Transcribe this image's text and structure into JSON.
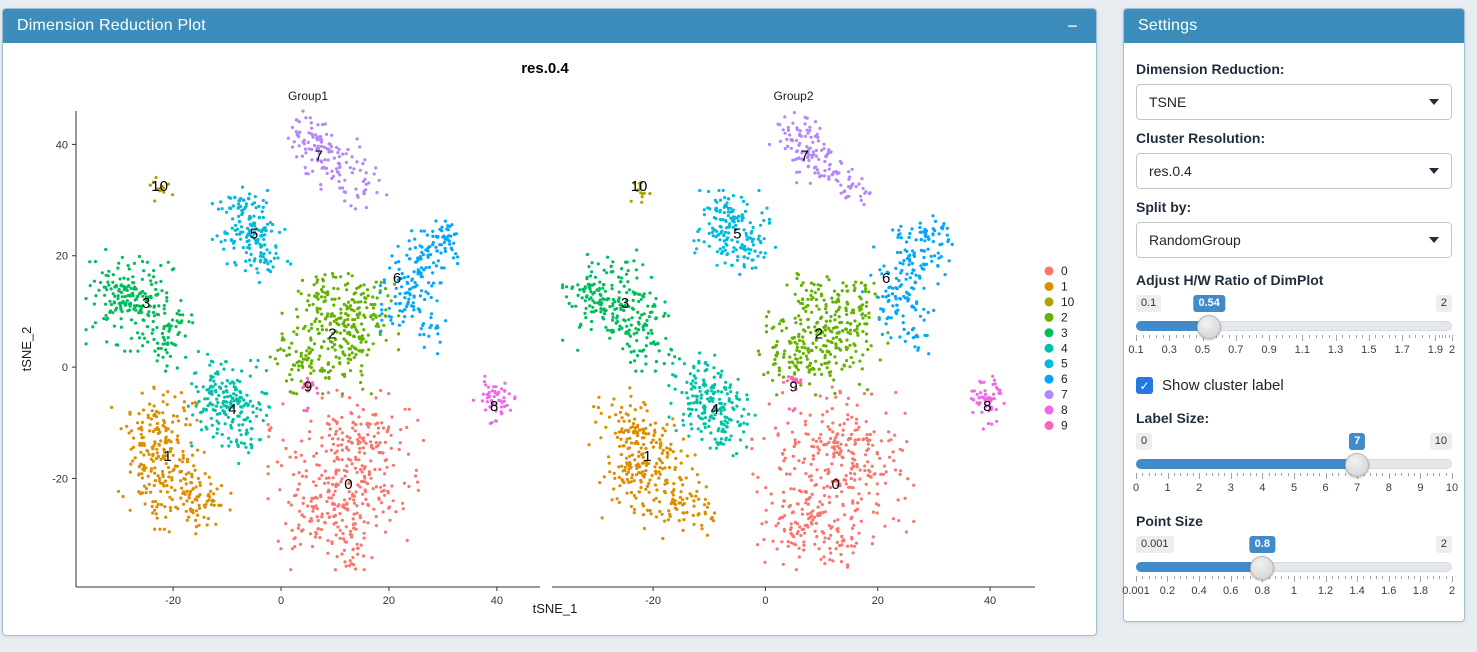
{
  "theme": {
    "panel_header_bg": "#3c8dbc",
    "header_text": "#ffffff",
    "page_bg": "#e8edf2",
    "card_border": "#9fc0d4",
    "slider_fill": "#428bca",
    "value_badge_bg": "#428bca",
    "range_badge_bg": "#ededed",
    "checkbox_bg": "#2379e0"
  },
  "plot_panel": {
    "title": "Dimension Reduction Plot",
    "minimize_icon": "−"
  },
  "chart_data": {
    "type": "scatter",
    "title": "res.0.4",
    "facets": [
      "Group1",
      "Group2"
    ],
    "xlabel": "tSNE_1",
    "ylabel": "tSNE_2",
    "xlim": [
      -38,
      48
    ],
    "ylim": [
      -39.5,
      46
    ],
    "xticks": [
      -20,
      0,
      20,
      40
    ],
    "yticks": [
      40,
      20,
      0,
      -20
    ],
    "grid": false,
    "legend_position": "right",
    "point_radius_px": 1.6,
    "legend_order": [
      "0",
      "1",
      "10",
      "2",
      "3",
      "4",
      "5",
      "6",
      "7",
      "8",
      "9"
    ],
    "clusters": [
      {
        "id": "0",
        "color": "#F8766D",
        "label_pos": [
          12.5,
          -21
        ],
        "blobs": [
          [
            12,
            -19,
            6,
            240
          ],
          [
            7,
            -28,
            3.5,
            80
          ],
          [
            17,
            -12,
            3.5,
            60
          ],
          [
            13,
            -33,
            1.8,
            25
          ]
        ]
      },
      {
        "id": "1",
        "color": "#DB8E00",
        "label_pos": [
          -21,
          -16
        ],
        "blobs": [
          [
            -23,
            -12,
            3.5,
            120
          ],
          [
            -21,
            -20,
            3.8,
            130
          ],
          [
            -14,
            -25,
            2.8,
            55
          ]
        ]
      },
      {
        "id": "10",
        "color": "#AEA200",
        "label_pos": [
          -22.5,
          32.5
        ],
        "blobs": [
          [
            -22.5,
            32,
            1.0,
            13
          ]
        ]
      },
      {
        "id": "2",
        "color": "#64B200",
        "label_pos": [
          9.5,
          6
        ],
        "blobs": [
          [
            11,
            6,
            4.5,
            210
          ],
          [
            4,
            1,
            2.5,
            50
          ],
          [
            16,
            12,
            2.5,
            45
          ],
          [
            8,
            13,
            2,
            25
          ]
        ]
      },
      {
        "id": "3",
        "color": "#00BD5C",
        "label_pos": [
          -25,
          11.5
        ],
        "blobs": [
          [
            -27,
            12,
            3.8,
            160
          ],
          [
            -21,
            6,
            2.8,
            60
          ],
          [
            -31,
            14,
            2,
            30
          ]
        ]
      },
      {
        "id": "4",
        "color": "#00C1A7",
        "label_pos": [
          -9,
          -7.5
        ],
        "blobs": [
          [
            -9.5,
            -6.5,
            3.2,
            160
          ],
          [
            -7,
            -13,
            1.8,
            20
          ],
          [
            -12,
            -1,
            2,
            20
          ]
        ]
      },
      {
        "id": "5",
        "color": "#00BADE",
        "label_pos": [
          -5,
          24
        ],
        "blobs": [
          [
            -6,
            25,
            2.8,
            120
          ],
          [
            -3,
            20,
            2,
            35
          ],
          [
            -8,
            29,
            1.5,
            20
          ]
        ]
      },
      {
        "id": "6",
        "color": "#00A6FF",
        "label_pos": [
          21.5,
          16
        ],
        "blobs": [
          [
            26,
            20,
            2.8,
            70
          ],
          [
            24,
            12,
            2.8,
            70
          ],
          [
            30,
            23,
            1.8,
            35
          ],
          [
            27,
            6,
            1.5,
            15
          ]
        ]
      },
      {
        "id": "7",
        "color": "#B385FF",
        "label_pos": [
          7,
          38
        ],
        "blobs": [
          [
            6,
            41,
            2.2,
            55
          ],
          [
            10,
            37,
            2.3,
            55
          ],
          [
            15.5,
            32.5,
            1.7,
            28
          ]
        ]
      },
      {
        "id": "8",
        "color": "#EF67EB",
        "label_pos": [
          39.5,
          -7
        ],
        "blobs": [
          [
            39.5,
            -5.5,
            1.6,
            50
          ],
          [
            39.8,
            -10,
            0.6,
            4
          ]
        ]
      },
      {
        "id": "9",
        "color": "#FF63B6",
        "label_pos": [
          5,
          -3.5
        ],
        "blobs": [
          [
            5,
            -3,
            0.8,
            14
          ],
          [
            4.5,
            -7.5,
            0.4,
            3
          ]
        ]
      }
    ]
  },
  "settings_panel": {
    "title": "Settings",
    "selects": [
      {
        "label": "Dimension Reduction:",
        "value": "TSNE"
      },
      {
        "label": "Cluster Resolution:",
        "value": "res.0.4"
      },
      {
        "label": "Split by:",
        "value": "RandomGroup"
      }
    ],
    "sliders": [
      {
        "label": "Adjust H/W Ratio of DimPlot",
        "min": 0.1,
        "max": 2,
        "value": 0.54,
        "min_label": "0.1",
        "max_label": "2",
        "value_label": "0.54",
        "tick_values": [
          0.1,
          0.3,
          0.5,
          0.7,
          0.9,
          1.1,
          1.3,
          1.5,
          1.7,
          1.9,
          2
        ],
        "tick_labels": [
          "0.1",
          "0.3",
          "0.5",
          "0.7",
          "0.9",
          "1.1",
          "1.3",
          "1.5",
          "1.7",
          "1.9",
          "2"
        ]
      },
      {
        "label": "Label Size:",
        "min": 0,
        "max": 10,
        "value": 7,
        "min_label": "0",
        "max_label": "10",
        "value_label": "7",
        "tick_values": [
          0,
          1,
          2,
          3,
          4,
          5,
          6,
          7,
          8,
          9,
          10
        ],
        "tick_labels": [
          "0",
          "1",
          "2",
          "3",
          "4",
          "5",
          "6",
          "7",
          "8",
          "9",
          "10"
        ]
      },
      {
        "label": "Point Size",
        "min": 0.001,
        "max": 2,
        "value": 0.8,
        "min_label": "0.001",
        "max_label": "2",
        "value_label": "0.8",
        "tick_values": [
          0.001,
          0.2,
          0.4,
          0.6,
          0.8,
          1,
          1.2,
          1.4,
          1.6,
          1.8,
          2
        ],
        "tick_labels": [
          "0.001",
          "0.2",
          "0.4",
          "0.6",
          "0.8",
          "1",
          "1.2",
          "1.4",
          "1.6",
          "1.8",
          "2"
        ]
      }
    ],
    "checkbox": {
      "label": "Show cluster label",
      "checked": true,
      "check_glyph": "✓"
    }
  }
}
